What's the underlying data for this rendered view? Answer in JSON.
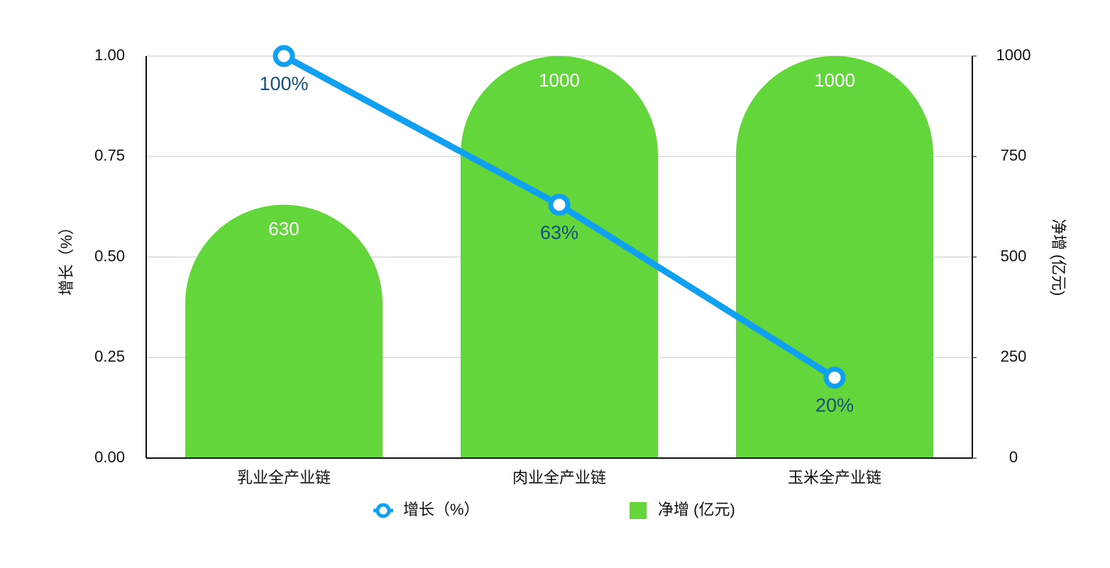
{
  "chart_data": {
    "type": "combo",
    "categories": [
      "乳业全产业链",
      "肉业全产业链",
      "玉米全产业链"
    ],
    "series": [
      {
        "name": "增长（%）",
        "type": "line",
        "color": "#0fa0f2",
        "axis": "y",
        "values": [
          1.0,
          0.63,
          0.2
        ],
        "value_labels": [
          "100%",
          "63%",
          "20%"
        ]
      },
      {
        "name": "净增 (亿元)",
        "type": "bar",
        "color": "#62d63a",
        "axis": "y2",
        "values": [
          630,
          1000,
          1000
        ]
      }
    ],
    "ylabel": "增长（%）",
    "y2label": "净增 (亿元)",
    "ylim": [
      0,
      1
    ],
    "yticks": [
      {
        "value": 0,
        "label": "0.00"
      },
      {
        "value": 0.25,
        "label": "0.25"
      },
      {
        "value": 0.5,
        "label": "0.50"
      },
      {
        "value": 0.75,
        "label": "0.75"
      },
      {
        "value": 1,
        "label": "1.00"
      }
    ],
    "y2lim": [
      0,
      1000
    ],
    "y2ticks": [
      0,
      250,
      500,
      750,
      1000
    ],
    "grid": true,
    "legend": "bottom"
  }
}
